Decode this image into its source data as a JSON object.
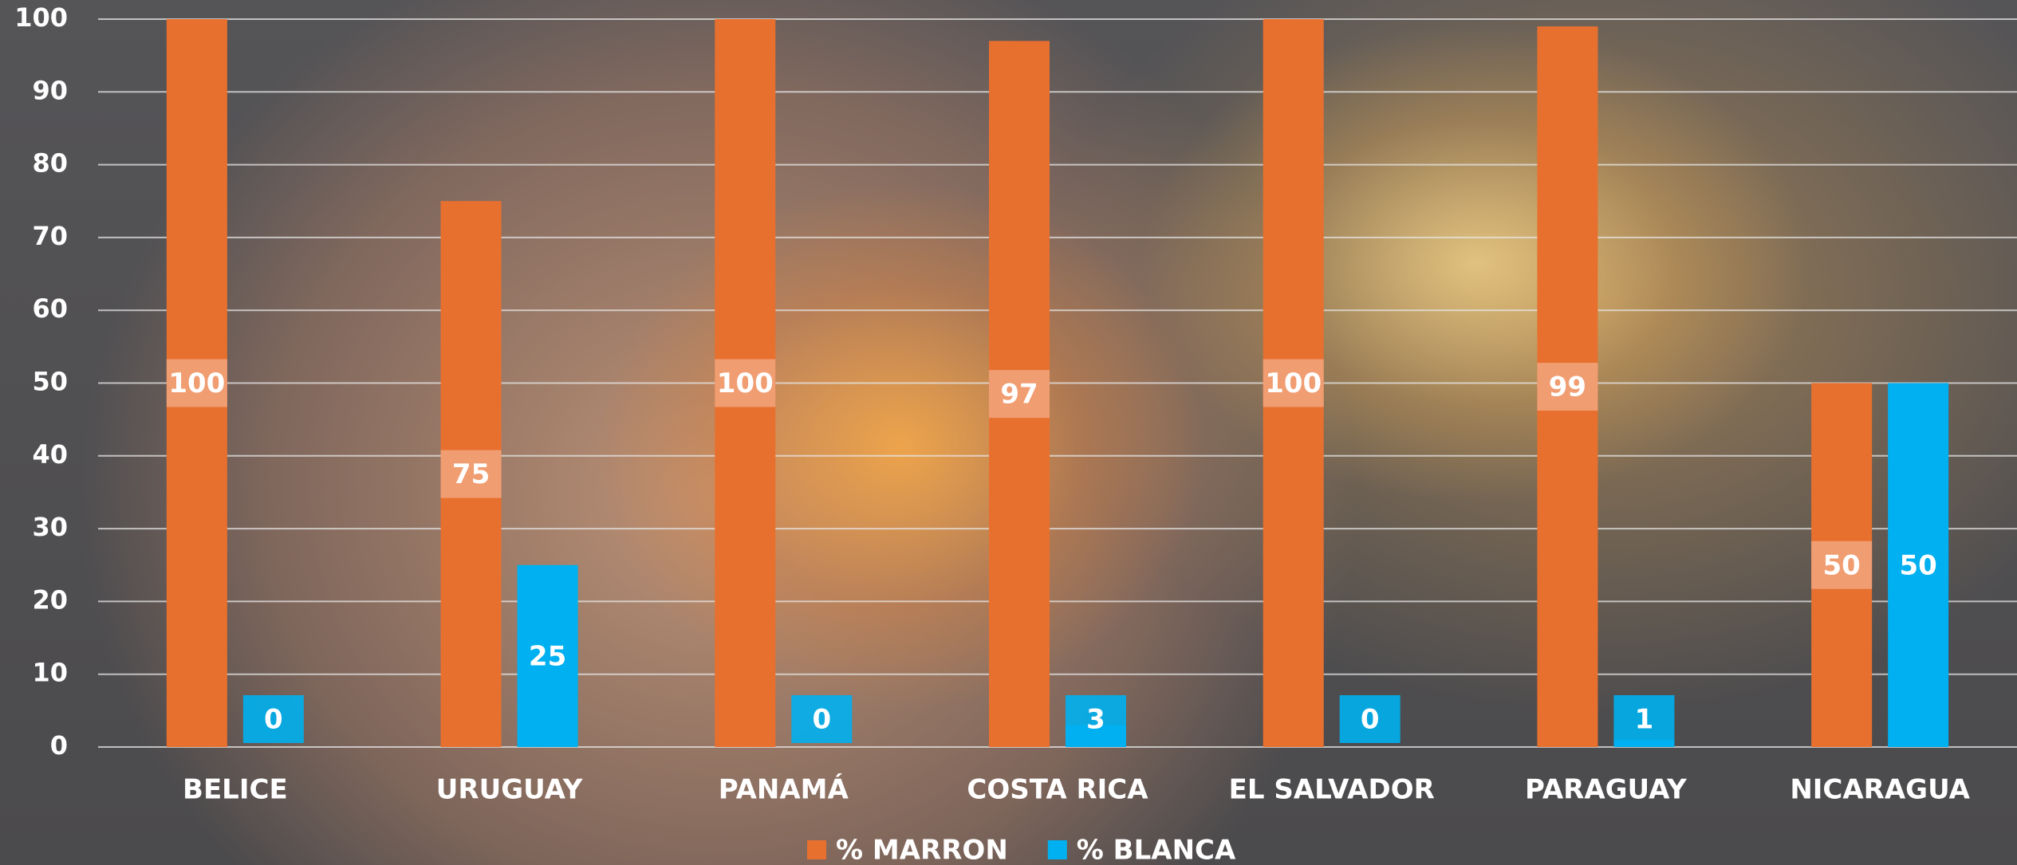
{
  "chart_data": {
    "type": "bar",
    "categories": [
      "BELICE",
      "URUGUAY",
      "PANAMÁ",
      "COSTA RICA",
      "EL SALVADOR",
      "PARAGUAY",
      "NICARAGUA"
    ],
    "series": [
      {
        "name": "% MARRON",
        "color": "#E8702F",
        "label_box": "#F2A27A",
        "values": [
          100,
          75,
          100,
          97,
          100,
          99,
          50
        ]
      },
      {
        "name": "% BLANCA",
        "color": "#00B0F0",
        "label_box": "#00B0F0",
        "values": [
          0,
          25,
          0,
          3,
          0,
          1,
          50
        ]
      }
    ],
    "ylim": [
      0,
      100
    ],
    "yticks": [
      0,
      10,
      20,
      30,
      40,
      50,
      60,
      70,
      80,
      90,
      100
    ],
    "grid": true,
    "legend": "bottom"
  }
}
